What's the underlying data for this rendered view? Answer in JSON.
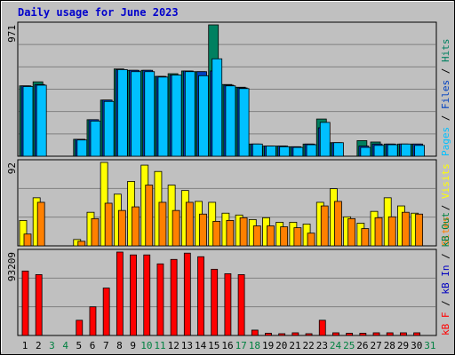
{
  "chart_data": {
    "type": "bar",
    "title": "Daily usage for June 2023",
    "categories": [
      "1",
      "2",
      "3",
      "4",
      "5",
      "6",
      "7",
      "8",
      "9",
      "10",
      "11",
      "12",
      "13",
      "14",
      "15",
      "16",
      "17",
      "18",
      "19",
      "20",
      "21",
      "22",
      "23",
      "24",
      "25",
      "26",
      "27",
      "28",
      "29",
      "30",
      "31"
    ],
    "weekend_day_color": "#008040",
    "weekday_color": "#000000",
    "weekend_days": [
      "3",
      "4",
      "10",
      "11",
      "17",
      "18",
      "24",
      "25",
      "31"
    ],
    "panels": [
      {
        "name": "requests",
        "ymax_label": "971",
        "ymax": 971,
        "legend": [
          {
            "text": "Pages",
            "color": "#00c0ff"
          },
          {
            "text": " / ",
            "color": "#000000"
          },
          {
            "text": "Files",
            "color": "#0040c0"
          },
          {
            "text": " / ",
            "color": "#000000"
          },
          {
            "text": "Hits",
            "color": "#008060"
          }
        ],
        "series": [
          {
            "name": "Hits",
            "color": "#008060",
            "values": [
              520,
              550,
              0,
              0,
              125,
              270,
              415,
              645,
              635,
              635,
              590,
              610,
              630,
              625,
              971,
              530,
              510,
              90,
              75,
              75,
              70,
              90,
              275,
              100,
              0,
              115,
              105,
              90,
              90,
              90,
              0
            ]
          },
          {
            "name": "Files",
            "color": "#0040c0",
            "values": [
              520,
              530,
              0,
              0,
              125,
              270,
              415,
              640,
              635,
              635,
              590,
              600,
              630,
              625,
              630,
              525,
              505,
              90,
              75,
              75,
              70,
              90,
              210,
              100,
              0,
              75,
              90,
              90,
              90,
              90,
              0
            ]
          },
          {
            "name": "Pages",
            "color": "#00c0ff",
            "values": [
              515,
              525,
              0,
              0,
              120,
              260,
              405,
              640,
              625,
              625,
              585,
              600,
              625,
              595,
              720,
              520,
              500,
              90,
              75,
              70,
              65,
              85,
              250,
              100,
              0,
              65,
              80,
              85,
              90,
              80,
              0
            ]
          }
        ]
      },
      {
        "name": "visitors",
        "ymax_label": "92",
        "ymax": 92,
        "legend": [
          {
            "text": "Sites",
            "color": "#ff8000"
          },
          {
            "text": " / ",
            "color": "#000000"
          },
          {
            "text": "Visits",
            "color": "#ffff00"
          }
        ],
        "series": [
          {
            "name": "Visits",
            "color": "#ffff00",
            "values": [
              28,
              53,
              0,
              0,
              7,
              37,
              92,
              57,
              71,
              89,
              82,
              67,
              61,
              49,
              48,
              36,
              34,
              29,
              31,
              26,
              26,
              24,
              48,
              63,
              32,
              25,
              38,
              53,
              44,
              36,
              0
            ]
          },
          {
            "name": "Sites",
            "color": "#ff8000",
            "values": [
              13,
              48,
              0,
              0,
              5,
              30,
              47,
              39,
              43,
              67,
              48,
              39,
              48,
              35,
              27,
              28,
              31,
              22,
              22,
              21,
              20,
              14,
              44,
              49,
              30,
              19,
              31,
              32,
              37,
              35,
              0
            ]
          }
        ]
      },
      {
        "name": "traffic",
        "ymax_label": "93209",
        "ymax": 93209,
        "legend": [
          {
            "text": "kB F",
            "color": "#ff0000"
          },
          {
            "text": " / ",
            "color": "#000000"
          },
          {
            "text": "kB In",
            "color": "#0000c0"
          },
          {
            "text": " / ",
            "color": "#000000"
          },
          {
            "text": "kB Out",
            "color": "#008040"
          }
        ],
        "series": [
          {
            "name": "kB F",
            "color": "#ff0000",
            "values": [
              72000,
              68000,
              0,
              0,
              17000,
              32000,
              53000,
              93209,
              90000,
              90000,
              80000,
              85000,
              92000,
              88000,
              74000,
              69000,
              68000,
              6000,
              2500,
              2000,
              3000,
              2000,
              17000,
              3000,
              2500,
              2500,
              3000,
              3000,
              3000,
              3000,
              0
            ]
          }
        ]
      }
    ],
    "colors": {
      "plot_background": "#c0c0c0",
      "gridline": "#808080",
      "title": "#0000cc"
    }
  }
}
